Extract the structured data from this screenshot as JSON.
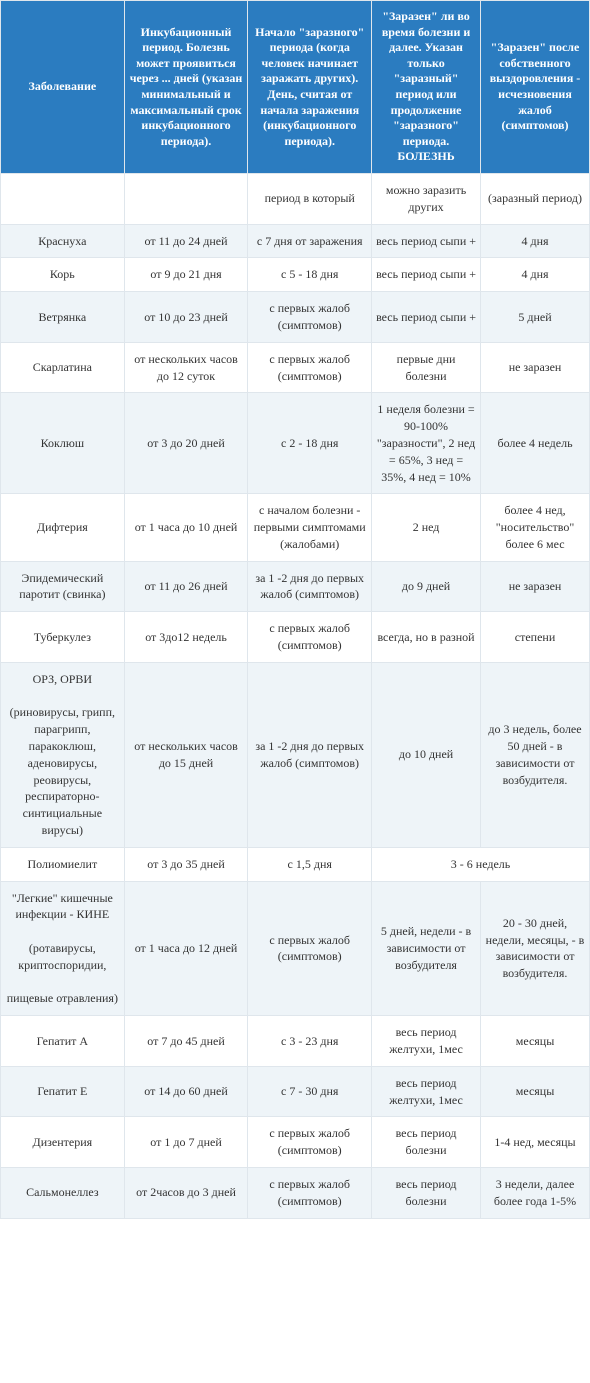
{
  "table": {
    "header_bg": "#2b7cc0",
    "header_color": "#ffffff",
    "row_odd_bg": "#ffffff",
    "row_even_bg": "#eef4f8",
    "border_color": "#dfe6ec",
    "columns": [
      "Заболевание",
      "Инкубационный период. Болезнь может проявиться через ... дней (указан минимальный и максимальный срок инкубационного периода).",
      "Начало \"заразного\" периода (когда человек начинает заражать других). День, считая от начала заражения (инкубационного периода).",
      "\"Заразен\" ли во время болезни и далее. Указан только \"заразный\" период или продолжение \"заразного\" периода. БОЛЕЗНЬ",
      "\"Заразен\" после собственного выздоровления - исчезновения жалоб (симптомов)"
    ],
    "rows": [
      {
        "cells": [
          "",
          "",
          "период в который",
          "можно заразить других",
          "(заразный период)"
        ],
        "colspan": [
          1,
          1,
          1,
          1,
          1
        ]
      },
      {
        "cells": [
          "Краснуха",
          "от 11 до 24 дней",
          "с 7 дня от заражения",
          "весь период сыпи +",
          "4 дня"
        ],
        "colspan": [
          1,
          1,
          1,
          1,
          1
        ]
      },
      {
        "cells": [
          "Корь",
          "от 9 до 21 дня",
          "с 5 - 18 дня",
          "весь период сыпи +",
          "4 дня"
        ],
        "colspan": [
          1,
          1,
          1,
          1,
          1
        ]
      },
      {
        "cells": [
          "Ветрянка",
          "от 10 до 23 дней",
          "с первых жалоб (симптомов)",
          "весь период сыпи +",
          "5 дней"
        ],
        "colspan": [
          1,
          1,
          1,
          1,
          1
        ]
      },
      {
        "cells": [
          "Скарлатина",
          "от нескольких часов до 12 суток",
          "с первых жалоб (симптомов)",
          "первые дни болезни",
          "не заразен"
        ],
        "colspan": [
          1,
          1,
          1,
          1,
          1
        ]
      },
      {
        "cells": [
          "Коклюш",
          "от 3 до 20 дней",
          "с 2 - 18 дня",
          "1 неделя болезни = 90-100% \"заразности\", 2 нед = 65%, 3 нед = 35%, 4 нед = 10%",
          "более 4 недель"
        ],
        "colspan": [
          1,
          1,
          1,
          1,
          1
        ]
      },
      {
        "cells": [
          "Дифтерия",
          "от 1 часа до 10 дней",
          "с началом болезни - первыми симптомами (жалобами)",
          "2 нед",
          "более 4 нед, \"носительство\" более 6 мес"
        ],
        "colspan": [
          1,
          1,
          1,
          1,
          1
        ]
      },
      {
        "cells": [
          "Эпидемический паротит (свинка)",
          "от 11 до 26 дней",
          "за 1 -2 дня до первых жалоб (симптомов)",
          "до 9 дней",
          "не заразен"
        ],
        "colspan": [
          1,
          1,
          1,
          1,
          1
        ]
      },
      {
        "cells": [
          "Туберкулез",
          "от 3до12 недель",
          "с первых жалоб (симптомов)",
          "всегда, но в разной",
          "степени"
        ],
        "colspan": [
          1,
          1,
          1,
          1,
          1
        ]
      },
      {
        "cells": [
          "ОРЗ, ОРВИ\n\n(риновирусы, грипп, парагрипп, паракоклюш, аденовирусы, реовирусы, респираторно-синтициальные вирусы)",
          "от нескольких часов до 15 дней",
          "за 1 -2 дня до первых жалоб (симптомов)",
          "до 10 дней",
          "до 3 недель, более 50 дней - в зависимости от возбудителя."
        ],
        "colspan": [
          1,
          1,
          1,
          1,
          1
        ]
      },
      {
        "cells": [
          "Полиомиелит",
          "от 3 до 35 дней",
          "с 1,5 дня",
          "3 - 6 недель"
        ],
        "colspan": [
          1,
          1,
          1,
          2
        ]
      },
      {
        "cells": [
          "\"Легкие\" кишечные инфекции - КИНЕ\n\n(ротавирусы, криптоспоридии,\n\nпищевые отравления)",
          "от 1 часа до 12 дней",
          "с первых жалоб (симптомов)",
          "5 дней, недели - в зависимости от возбудителя",
          "20 - 30 дней, недели, месяцы, - в зависимости от возбудителя."
        ],
        "colspan": [
          1,
          1,
          1,
          1,
          1
        ]
      },
      {
        "cells": [
          "Гепатит А",
          "от 7 до 45 дней",
          "с 3 - 23 дня",
          "весь период желтухи, 1мес",
          "месяцы"
        ],
        "colspan": [
          1,
          1,
          1,
          1,
          1
        ]
      },
      {
        "cells": [
          "Гепатит Е",
          "от 14 до 60 дней",
          "с 7 - 30 дня",
          "весь период желтухи, 1мес",
          "месяцы"
        ],
        "colspan": [
          1,
          1,
          1,
          1,
          1
        ]
      },
      {
        "cells": [
          "Дизентерия",
          "от 1 до 7 дней",
          "с первых жалоб (симптомов)",
          "весь период болезни",
          "1-4 нед, месяцы"
        ],
        "colspan": [
          1,
          1,
          1,
          1,
          1
        ]
      },
      {
        "cells": [
          "Сальмонеллез",
          "от 2часов до 3 дней",
          "с первых жалоб (симптомов)",
          "весь период болезни",
          "3 недели, далее более года 1-5%"
        ],
        "colspan": [
          1,
          1,
          1,
          1,
          1
        ]
      }
    ]
  }
}
